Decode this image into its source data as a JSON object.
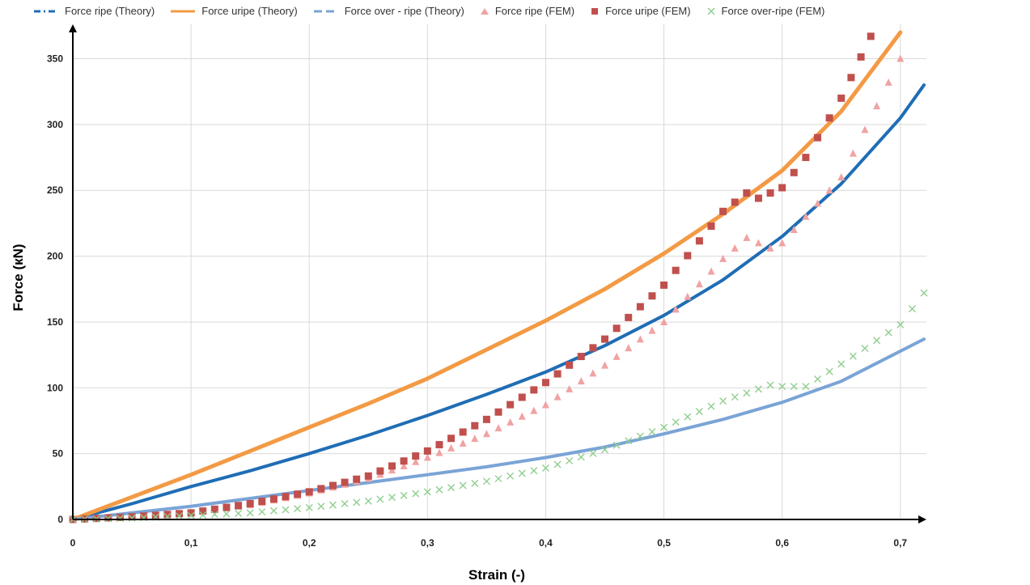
{
  "chart_data": {
    "type": "scatter",
    "xlabel": "Strain (-)",
    "ylabel": "Force (кN)",
    "xlim": [
      0,
      0.72
    ],
    "ylim": [
      0,
      370
    ],
    "x_ticks": [
      "0",
      "0,1",
      "0,2",
      "0,3",
      "0,4",
      "0,5",
      "0,6",
      "0,7"
    ],
    "y_ticks": [
      "0",
      "50",
      "100",
      "150",
      "200",
      "250",
      "300",
      "350"
    ],
    "grid": true,
    "legend_position": "top",
    "series": [
      {
        "name": "Force ripe (Theory)",
        "style": "line",
        "color": "#1f6db5",
        "x": [
          0,
          0.05,
          0.1,
          0.15,
          0.2,
          0.25,
          0.3,
          0.35,
          0.4,
          0.45,
          0.5,
          0.55,
          0.6,
          0.65,
          0.7,
          0.72
        ],
        "y": [
          0,
          12,
          25,
          37,
          50,
          64,
          79,
          95,
          112,
          132,
          155,
          182,
          215,
          255,
          305,
          330
        ]
      },
      {
        "name": "Force uripe (Theory)",
        "style": "line",
        "color": "#f39a44",
        "x": [
          0,
          0.05,
          0.1,
          0.15,
          0.2,
          0.25,
          0.3,
          0.35,
          0.4,
          0.45,
          0.5,
          0.55,
          0.6,
          0.65,
          0.7
        ],
        "y": [
          0,
          17,
          34,
          52,
          70,
          88,
          107,
          129,
          151,
          175,
          202,
          232,
          265,
          310,
          370
        ]
      },
      {
        "name": "Force over - ripe (Theory)",
        "style": "line",
        "color": "#7aa4d6",
        "x": [
          0,
          0.05,
          0.1,
          0.15,
          0.2,
          0.25,
          0.3,
          0.35,
          0.4,
          0.45,
          0.5,
          0.55,
          0.6,
          0.65,
          0.72
        ],
        "y": [
          0,
          5,
          10,
          16,
          22,
          28,
          34,
          40,
          47,
          55,
          65,
          76,
          89,
          105,
          137
        ]
      },
      {
        "name": "Force ripe (FEM)",
        "style": "triangle",
        "color": "#f0a3a3",
        "x": [
          0,
          0.05,
          0.1,
          0.15,
          0.2,
          0.25,
          0.3,
          0.35,
          0.4,
          0.45,
          0.5,
          0.55,
          0.57,
          0.59,
          0.6,
          0.65,
          0.7
        ],
        "y": [
          0,
          2,
          5,
          11,
          20,
          31,
          47,
          65,
          87,
          117,
          150,
          198,
          214,
          206,
          210,
          260,
          350
        ]
      },
      {
        "name": "Force uripe (FEM)",
        "style": "square",
        "color": "#c0504d",
        "x": [
          0,
          0.05,
          0.1,
          0.15,
          0.2,
          0.25,
          0.3,
          0.35,
          0.4,
          0.45,
          0.5,
          0.55,
          0.57,
          0.58,
          0.6,
          0.62,
          0.65,
          0.675
        ],
        "y": [
          0,
          2,
          5,
          12,
          21,
          33,
          52,
          76,
          104,
          137,
          178,
          234,
          248,
          244,
          252,
          275,
          320,
          367
        ]
      },
      {
        "name": "Force over-ripe (FEM)",
        "style": "cross",
        "color": "#8fce8f",
        "x": [
          0,
          0.05,
          0.1,
          0.15,
          0.2,
          0.25,
          0.3,
          0.35,
          0.4,
          0.45,
          0.5,
          0.55,
          0.59,
          0.6,
          0.62,
          0.65,
          0.7,
          0.72
        ],
        "y": [
          0,
          1,
          3,
          5,
          9,
          14,
          21,
          29,
          39,
          53,
          70,
          90,
          102,
          101,
          101,
          118,
          148,
          172
        ]
      }
    ]
  }
}
